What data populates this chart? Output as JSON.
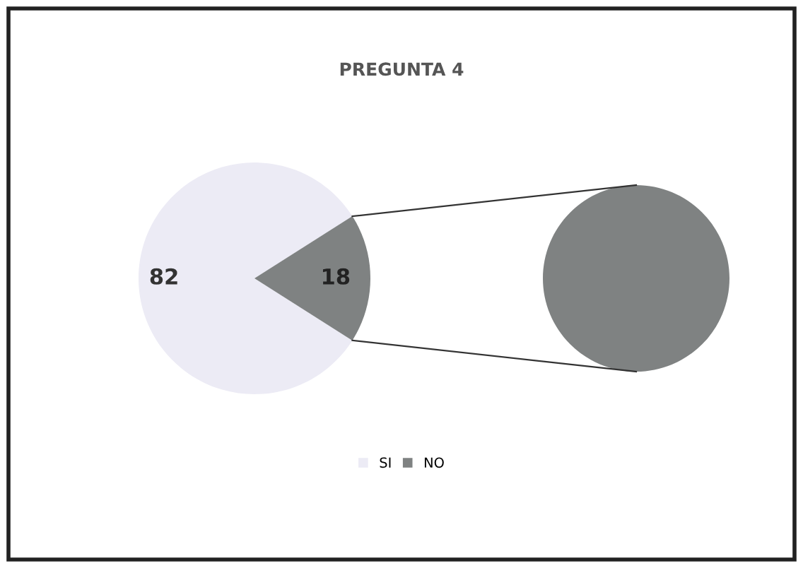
{
  "chart_data": {
    "type": "pie",
    "title": "PREGUNTA 4",
    "categories": [
      "SI",
      "NO"
    ],
    "values": [
      82,
      18
    ],
    "colors": [
      "#ecebf5",
      "#7f8282"
    ],
    "data_labels": true,
    "legend": "bottom"
  }
}
